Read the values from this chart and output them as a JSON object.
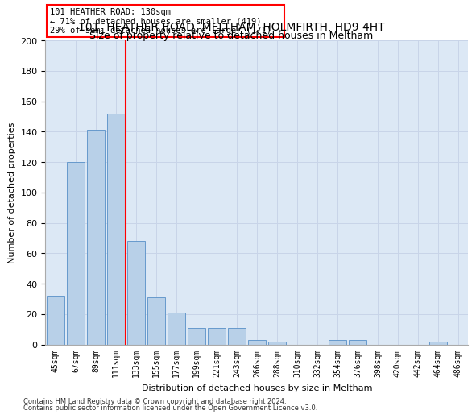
{
  "title_line1": "101, HEATHER ROAD, MELTHAM, HOLMFIRTH, HD9 4HT",
  "title_line2": "Size of property relative to detached houses in Meltham",
  "xlabel": "Distribution of detached houses by size in Meltham",
  "ylabel": "Number of detached properties",
  "bar_labels": [
    "45sqm",
    "67sqm",
    "89sqm",
    "111sqm",
    "133sqm",
    "155sqm",
    "177sqm",
    "199sqm",
    "221sqm",
    "243sqm",
    "266sqm",
    "288sqm",
    "310sqm",
    "332sqm",
    "354sqm",
    "376sqm",
    "398sqm",
    "420sqm",
    "442sqm",
    "464sqm",
    "486sqm"
  ],
  "bar_values": [
    32,
    120,
    141,
    152,
    68,
    31,
    21,
    11,
    11,
    11,
    3,
    2,
    0,
    0,
    3,
    3,
    0,
    0,
    0,
    2,
    0
  ],
  "bar_color": "#b8d0e8",
  "bar_edgecolor": "#6699cc",
  "annotation_text": "101 HEATHER ROAD: 130sqm\n← 71% of detached houses are smaller (419)\n29% of semi-detached houses are larger (171) →",
  "vline_color": "red",
  "ylim": [
    0,
    200
  ],
  "yticks": [
    0,
    20,
    40,
    60,
    80,
    100,
    120,
    140,
    160,
    180,
    200
  ],
  "grid_color": "#c8d4e8",
  "bg_color": "#dce8f5",
  "footer_line1": "Contains HM Land Registry data © Crown copyright and database right 2024.",
  "footer_line2": "Contains public sector information licensed under the Open Government Licence v3.0."
}
